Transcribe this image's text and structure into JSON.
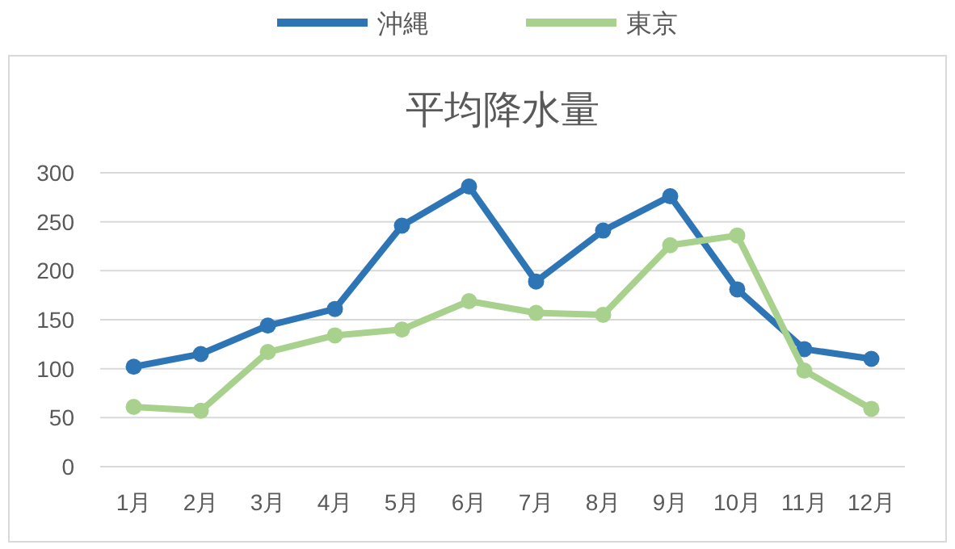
{
  "chart_data": {
    "type": "line",
    "title": "平均降水量",
    "categories": [
      "1月",
      "2月",
      "3月",
      "4月",
      "5月",
      "6月",
      "7月",
      "8月",
      "9月",
      "10月",
      "11月",
      "12月"
    ],
    "series": [
      {
        "name": "沖縄",
        "color": "#2e75b6",
        "values": [
          102,
          115,
          144,
          161,
          246,
          286,
          189,
          241,
          276,
          181,
          120,
          110
        ]
      },
      {
        "name": "東京",
        "color": "#a9d18e",
        "values": [
          61,
          57,
          117,
          134,
          140,
          169,
          157,
          155,
          226,
          236,
          98,
          59
        ]
      }
    ],
    "ylim": [
      0,
      300
    ],
    "yticks": [
      0,
      50,
      100,
      150,
      200,
      250,
      300
    ],
    "grid": "y",
    "legend": "top",
    "marker": "circle",
    "line_style": "solid"
  }
}
